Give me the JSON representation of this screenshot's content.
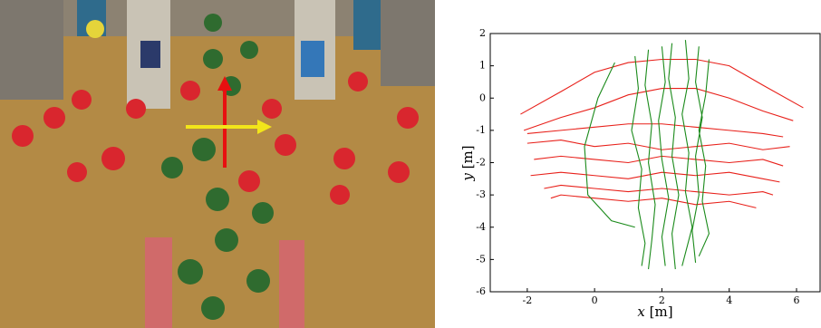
{
  "chart_data": {
    "type": "line",
    "xlabel": {
      "symbol": "x",
      "unit": "[m]"
    },
    "ylabel": {
      "symbol": "y",
      "unit": "[m]"
    },
    "xlim": [
      -3.1,
      6.7
    ],
    "ylim": [
      -6,
      2
    ],
    "xticks": [
      -2,
      0,
      2,
      4,
      6
    ],
    "yticks": [
      -6,
      -5,
      -4,
      -3,
      -2,
      -1,
      0,
      1,
      2
    ],
    "series": [
      {
        "color": "#e8201a",
        "x": [
          -2.2,
          -1,
          0,
          1,
          2,
          3,
          4,
          5,
          6.2
        ],
        "values": [
          -0.5,
          0.2,
          0.8,
          1.1,
          1.2,
          1.2,
          1.0,
          0.4,
          -0.3
        ]
      },
      {
        "color": "#e8201a",
        "x": [
          -2.1,
          -1,
          0,
          1,
          2,
          3,
          4,
          5,
          5.9
        ],
        "values": [
          -1.0,
          -0.6,
          -0.3,
          0.1,
          0.3,
          0.3,
          0.0,
          -0.4,
          -0.7
        ]
      },
      {
        "color": "#e8201a",
        "x": [
          -2.0,
          -1,
          0,
          1,
          2,
          3,
          4,
          5,
          5.6
        ],
        "values": [
          -1.1,
          -1.0,
          -0.9,
          -0.8,
          -0.8,
          -0.9,
          -1.0,
          -1.1,
          -1.2
        ]
      },
      {
        "color": "#e8201a",
        "x": [
          -2.0,
          -1,
          0,
          1,
          2,
          3,
          4,
          5,
          5.8
        ],
        "values": [
          -1.4,
          -1.3,
          -1.5,
          -1.4,
          -1.6,
          -1.5,
          -1.4,
          -1.6,
          -1.5
        ]
      },
      {
        "color": "#e8201a",
        "x": [
          -1.8,
          -1,
          0,
          1,
          2,
          3,
          4,
          5,
          5.6
        ],
        "values": [
          -1.9,
          -1.8,
          -1.9,
          -2.0,
          -1.8,
          -1.9,
          -2.0,
          -1.9,
          -2.1
        ]
      },
      {
        "color": "#e8201a",
        "x": [
          -1.9,
          -1,
          0,
          1,
          2,
          3,
          4,
          5,
          5.5
        ],
        "values": [
          -2.4,
          -2.3,
          -2.4,
          -2.5,
          -2.3,
          -2.4,
          -2.3,
          -2.5,
          -2.6
        ]
      },
      {
        "color": "#e8201a",
        "x": [
          -1.5,
          -1,
          0,
          1,
          2,
          3,
          4,
          5,
          5.3
        ],
        "values": [
          -2.8,
          -2.7,
          -2.8,
          -2.9,
          -2.8,
          -2.9,
          -3.0,
          -2.9,
          -3.0
        ]
      },
      {
        "color": "#e8201a",
        "x": [
          -1.3,
          -1,
          0,
          1,
          2,
          3,
          4,
          4.8
        ],
        "values": [
          -3.1,
          -3.0,
          -3.1,
          -3.2,
          -3.1,
          -3.3,
          -3.2,
          -3.4
        ]
      },
      {
        "color": "#1a8a1a",
        "x": [
          0.6,
          0.1,
          -0.3,
          -0.2,
          0.5,
          1.2
        ],
        "values": [
          1.1,
          0.0,
          -1.5,
          -3.0,
          -3.8,
          -4.0
        ]
      },
      {
        "color": "#1a8a1a",
        "x": [
          1.2,
          1.3,
          1.1,
          1.4,
          1.3,
          1.5,
          1.4
        ],
        "values": [
          1.3,
          0.3,
          -1.0,
          -2.2,
          -3.4,
          -4.5,
          -5.2
        ]
      },
      {
        "color": "#1a8a1a",
        "x": [
          1.6,
          1.5,
          1.7,
          1.6,
          1.8,
          1.7,
          1.6
        ],
        "values": [
          1.5,
          0.4,
          -0.8,
          -2.0,
          -3.3,
          -4.4,
          -5.3
        ]
      },
      {
        "color": "#1a8a1a",
        "x": [
          2.0,
          2.1,
          1.9,
          2.0,
          2.2,
          2.0,
          2.1
        ],
        "values": [
          1.6,
          0.5,
          -0.7,
          -1.9,
          -3.1,
          -4.3,
          -5.2
        ]
      },
      {
        "color": "#1a8a1a",
        "x": [
          2.3,
          2.2,
          2.4,
          2.3,
          2.5,
          2.3,
          2.4
        ],
        "values": [
          1.7,
          0.6,
          -0.6,
          -1.8,
          -3.0,
          -4.2,
          -5.3
        ]
      },
      {
        "color": "#1a8a1a",
        "x": [
          2.7,
          2.8,
          2.6,
          2.8,
          2.7,
          2.9,
          2.6
        ],
        "values": [
          1.8,
          0.6,
          -0.5,
          -1.7,
          -2.9,
          -4.0,
          -5.2
        ]
      },
      {
        "color": "#1a8a1a",
        "x": [
          3.1,
          3.0,
          3.2,
          3.0,
          3.1,
          2.9,
          3.0
        ],
        "values": [
          1.6,
          0.5,
          -0.6,
          -1.8,
          -3.0,
          -4.1,
          -5.1
        ]
      },
      {
        "color": "#1a8a1a",
        "x": [
          3.4,
          3.3,
          3.1,
          3.3,
          3.2,
          3.4,
          3.1
        ],
        "values": [
          1.2,
          0.1,
          -1.0,
          -2.1,
          -3.2,
          -4.2,
          -4.9
        ]
      }
    ]
  }
}
